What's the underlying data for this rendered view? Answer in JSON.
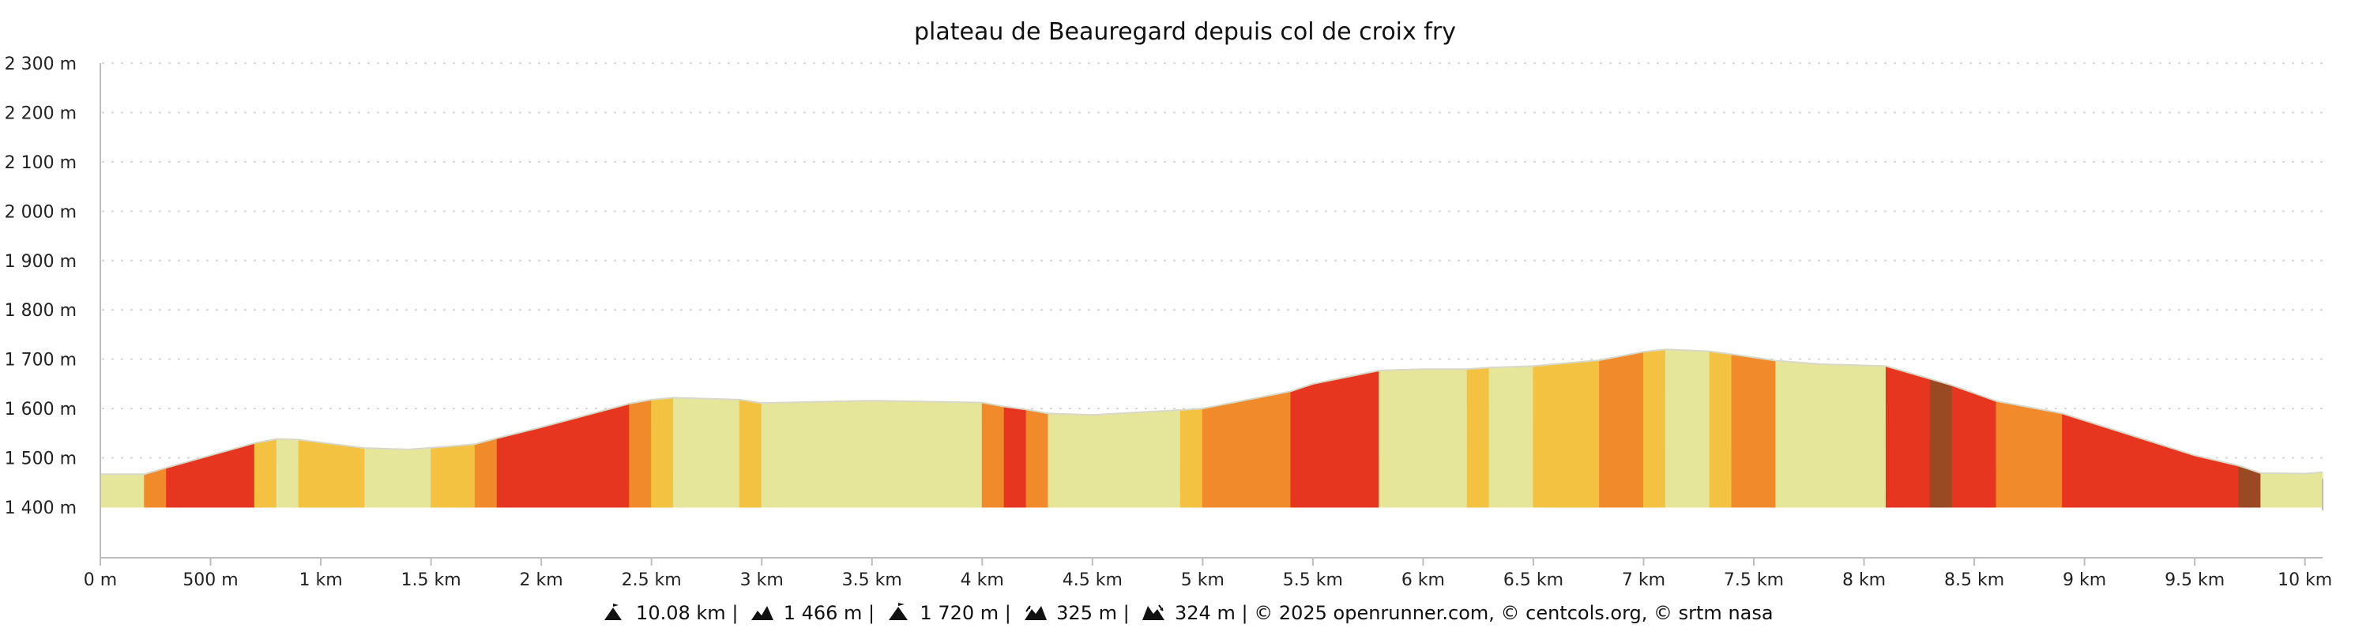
{
  "chart_data": {
    "type": "area",
    "title": "plateau de Beauregard depuis col de croix fry",
    "xlabel": "",
    "ylabel": "",
    "xlim_km": [
      0,
      10.08
    ],
    "ylim_m": [
      1400,
      2300
    ],
    "y_ticks": [
      {
        "value": 1400,
        "label": "1 400 m"
      },
      {
        "value": 1500,
        "label": "1 500 m"
      },
      {
        "value": 1600,
        "label": "1 600 m"
      },
      {
        "value": 1700,
        "label": "1 700 m"
      },
      {
        "value": 1800,
        "label": "1 800 m"
      },
      {
        "value": 1900,
        "label": "1 900 m"
      },
      {
        "value": 2000,
        "label": "2 000 m"
      },
      {
        "value": 2100,
        "label": "2 100 m"
      },
      {
        "value": 2200,
        "label": "2 200 m"
      },
      {
        "value": 2300,
        "label": "2 300 m"
      }
    ],
    "x_ticks": [
      {
        "value": 0,
        "label": "0 m"
      },
      {
        "value": 0.5,
        "label": "500 m"
      },
      {
        "value": 1,
        "label": "1 km"
      },
      {
        "value": 1.5,
        "label": "1.5 km"
      },
      {
        "value": 2,
        "label": "2 km"
      },
      {
        "value": 2.5,
        "label": "2.5 km"
      },
      {
        "value": 3,
        "label": "3 km"
      },
      {
        "value": 3.5,
        "label": "3.5 km"
      },
      {
        "value": 4,
        "label": "4 km"
      },
      {
        "value": 4.5,
        "label": "4.5 km"
      },
      {
        "value": 5,
        "label": "5 km"
      },
      {
        "value": 5.5,
        "label": "5.5 km"
      },
      {
        "value": 6,
        "label": "6 km"
      },
      {
        "value": 6.5,
        "label": "6.5 km"
      },
      {
        "value": 7,
        "label": "7 km"
      },
      {
        "value": 7.5,
        "label": "7.5 km"
      },
      {
        "value": 8,
        "label": "8 km"
      },
      {
        "value": 8.5,
        "label": "8.5 km"
      },
      {
        "value": 9,
        "label": "9 km"
      },
      {
        "value": 9.5,
        "label": "9.5 km"
      },
      {
        "value": 10,
        "label": "10 km"
      }
    ],
    "grid": true,
    "gradient_colors": {
      "gentle": "#e6e69a",
      "moderate": "#f2c240",
      "steep": "#f08a2a",
      "very_steep": "#e63620",
      "extreme": "#9a4a22"
    },
    "profile": [
      {
        "x": 0.0,
        "y": 1467
      },
      {
        "x": 0.2,
        "y": 1467
      },
      {
        "x": 0.3,
        "y": 1480
      },
      {
        "x": 0.7,
        "y": 1530
      },
      {
        "x": 0.8,
        "y": 1538
      },
      {
        "x": 0.9,
        "y": 1537
      },
      {
        "x": 1.2,
        "y": 1520
      },
      {
        "x": 1.4,
        "y": 1517
      },
      {
        "x": 1.6,
        "y": 1524
      },
      {
        "x": 1.7,
        "y": 1528
      },
      {
        "x": 1.8,
        "y": 1540
      },
      {
        "x": 2.0,
        "y": 1562
      },
      {
        "x": 2.4,
        "y": 1610
      },
      {
        "x": 2.5,
        "y": 1618
      },
      {
        "x": 2.6,
        "y": 1622
      },
      {
        "x": 2.9,
        "y": 1618
      },
      {
        "x": 3.0,
        "y": 1611
      },
      {
        "x": 3.5,
        "y": 1616
      },
      {
        "x": 4.0,
        "y": 1612
      },
      {
        "x": 4.1,
        "y": 1604
      },
      {
        "x": 4.2,
        "y": 1598
      },
      {
        "x": 4.3,
        "y": 1590
      },
      {
        "x": 4.5,
        "y": 1587
      },
      {
        "x": 4.9,
        "y": 1597
      },
      {
        "x": 5.0,
        "y": 1600
      },
      {
        "x": 5.4,
        "y": 1635
      },
      {
        "x": 5.5,
        "y": 1650
      },
      {
        "x": 5.8,
        "y": 1677
      },
      {
        "x": 6.0,
        "y": 1680
      },
      {
        "x": 6.2,
        "y": 1680
      },
      {
        "x": 6.3,
        "y": 1683
      },
      {
        "x": 6.5,
        "y": 1686
      },
      {
        "x": 6.8,
        "y": 1698
      },
      {
        "x": 7.0,
        "y": 1715
      },
      {
        "x": 7.1,
        "y": 1720
      },
      {
        "x": 7.3,
        "y": 1716
      },
      {
        "x": 7.4,
        "y": 1710
      },
      {
        "x": 7.6,
        "y": 1697
      },
      {
        "x": 7.8,
        "y": 1690
      },
      {
        "x": 8.1,
        "y": 1686
      },
      {
        "x": 8.3,
        "y": 1660
      },
      {
        "x": 8.4,
        "y": 1647
      },
      {
        "x": 8.6,
        "y": 1615
      },
      {
        "x": 8.9,
        "y": 1590
      },
      {
        "x": 9.5,
        "y": 1505
      },
      {
        "x": 9.7,
        "y": 1484
      },
      {
        "x": 9.8,
        "y": 1469
      },
      {
        "x": 10.0,
        "y": 1468
      },
      {
        "x": 10.08,
        "y": 1471
      }
    ],
    "segments": [
      {
        "from": 0.0,
        "to": 0.2,
        "grade": "gentle"
      },
      {
        "from": 0.2,
        "to": 0.3,
        "grade": "steep"
      },
      {
        "from": 0.3,
        "to": 0.7,
        "grade": "very_steep"
      },
      {
        "from": 0.7,
        "to": 0.8,
        "grade": "moderate"
      },
      {
        "from": 0.8,
        "to": 0.9,
        "grade": "gentle"
      },
      {
        "from": 0.9,
        "to": 1.2,
        "grade": "moderate"
      },
      {
        "from": 1.2,
        "to": 1.5,
        "grade": "gentle"
      },
      {
        "from": 1.5,
        "to": 1.7,
        "grade": "moderate"
      },
      {
        "from": 1.7,
        "to": 1.8,
        "grade": "steep"
      },
      {
        "from": 1.8,
        "to": 2.4,
        "grade": "very_steep"
      },
      {
        "from": 2.4,
        "to": 2.5,
        "grade": "steep"
      },
      {
        "from": 2.5,
        "to": 2.6,
        "grade": "moderate"
      },
      {
        "from": 2.6,
        "to": 2.9,
        "grade": "gentle"
      },
      {
        "from": 2.9,
        "to": 3.0,
        "grade": "moderate"
      },
      {
        "from": 3.0,
        "to": 4.0,
        "grade": "gentle"
      },
      {
        "from": 4.0,
        "to": 4.1,
        "grade": "steep"
      },
      {
        "from": 4.1,
        "to": 4.2,
        "grade": "very_steep"
      },
      {
        "from": 4.2,
        "to": 4.3,
        "grade": "steep"
      },
      {
        "from": 4.3,
        "to": 4.9,
        "grade": "gentle"
      },
      {
        "from": 4.9,
        "to": 5.0,
        "grade": "moderate"
      },
      {
        "from": 5.0,
        "to": 5.4,
        "grade": "steep"
      },
      {
        "from": 5.4,
        "to": 5.8,
        "grade": "very_steep"
      },
      {
        "from": 5.8,
        "to": 6.2,
        "grade": "gentle"
      },
      {
        "from": 6.2,
        "to": 6.3,
        "grade": "moderate"
      },
      {
        "from": 6.3,
        "to": 6.5,
        "grade": "gentle"
      },
      {
        "from": 6.5,
        "to": 6.8,
        "grade": "moderate"
      },
      {
        "from": 6.8,
        "to": 7.0,
        "grade": "steep"
      },
      {
        "from": 7.0,
        "to": 7.1,
        "grade": "moderate"
      },
      {
        "from": 7.1,
        "to": 7.3,
        "grade": "gentle"
      },
      {
        "from": 7.3,
        "to": 7.4,
        "grade": "moderate"
      },
      {
        "from": 7.4,
        "to": 7.6,
        "grade": "steep"
      },
      {
        "from": 7.6,
        "to": 8.1,
        "grade": "gentle"
      },
      {
        "from": 8.1,
        "to": 8.3,
        "grade": "very_steep"
      },
      {
        "from": 8.3,
        "to": 8.4,
        "grade": "extreme"
      },
      {
        "from": 8.4,
        "to": 8.6,
        "grade": "very_steep"
      },
      {
        "from": 8.6,
        "to": 8.9,
        "grade": "steep"
      },
      {
        "from": 8.9,
        "to": 9.7,
        "grade": "very_steep"
      },
      {
        "from": 9.7,
        "to": 9.8,
        "grade": "extreme"
      },
      {
        "from": 9.8,
        "to": 10.08,
        "grade": "gentle"
      }
    ]
  },
  "footer": {
    "distance": "10.08 km",
    "ascent": "1 466 m",
    "max_altitude": "1 720 m",
    "elevation_gain": "325 m",
    "elevation_loss": "324 m",
    "separator": "|",
    "credits": "© 2025 openrunner.com, © centcols.org, © srtm nasa",
    "icons": [
      "distance-icon",
      "ascent-icon",
      "max-altitude-icon",
      "elevation-gain-icon",
      "elevation-loss-icon"
    ]
  }
}
